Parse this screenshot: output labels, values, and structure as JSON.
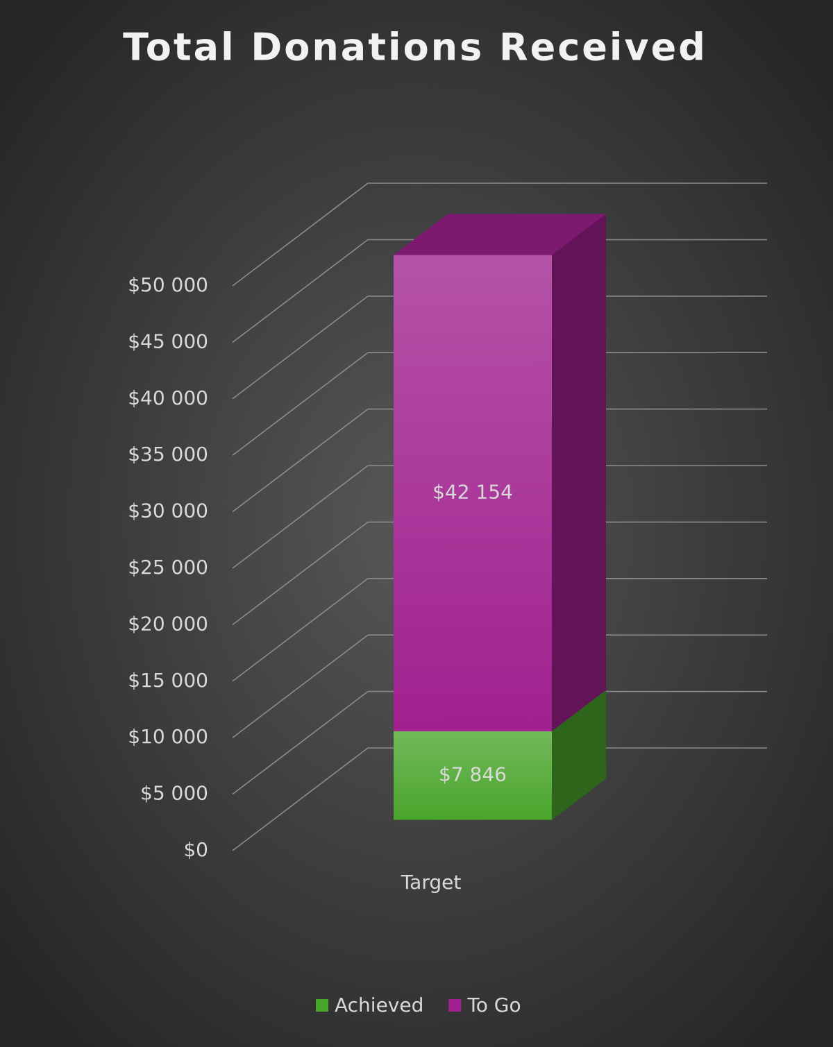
{
  "chart_data": {
    "type": "bar3d_stacked",
    "title": "Total Donations Received",
    "categories": [
      "Target"
    ],
    "series": [
      {
        "name": "Achieved",
        "color": "#4aa52c",
        "values": [
          7846
        ],
        "value_labels": [
          "$7 846"
        ]
      },
      {
        "name": "To Go",
        "color": "#a0218f",
        "values": [
          42154
        ],
        "value_labels": [
          "$42 154"
        ]
      }
    ],
    "ylim": [
      0,
      50000
    ],
    "yticks": [
      {
        "value": 0,
        "label": "$0"
      },
      {
        "value": 5000,
        "label": "$5 000"
      },
      {
        "value": 10000,
        "label": "$10 000"
      },
      {
        "value": 15000,
        "label": "$15 000"
      },
      {
        "value": 20000,
        "label": "$20 000"
      },
      {
        "value": 25000,
        "label": "$25 000"
      },
      {
        "value": 30000,
        "label": "$30 000"
      },
      {
        "value": 35000,
        "label": "$35 000"
      },
      {
        "value": 40000,
        "label": "$40 000"
      },
      {
        "value": 45000,
        "label": "$45 000"
      },
      {
        "value": 50000,
        "label": "$50 000"
      }
    ],
    "grid": true,
    "legend": "bottom"
  }
}
